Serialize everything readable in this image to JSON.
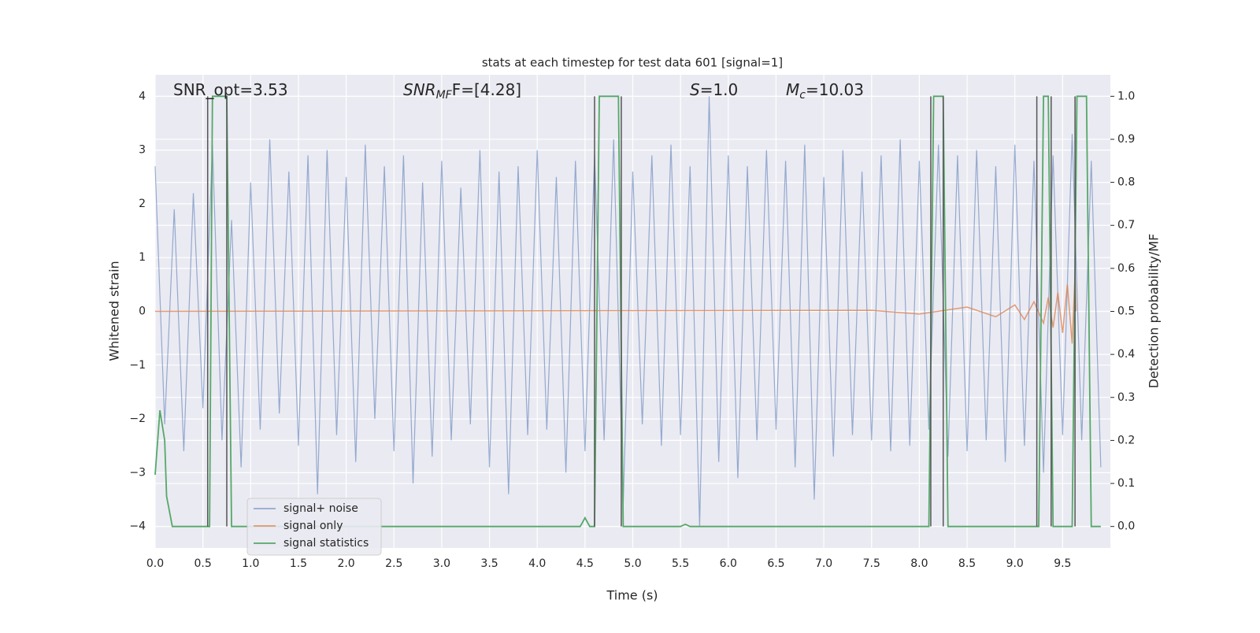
{
  "chart_data": {
    "type": "line",
    "title": "stats at each timestep for test data 601 [signal=1]",
    "xlabel": "Time (s)",
    "ylabel": "Whitened strain",
    "y2label": "Detection probability/MF",
    "annotations": [
      {
        "main": "SNR_opt=3.53"
      },
      {
        "main": "SNR",
        "sub": "MF",
        "rest": "F=[4.28]"
      },
      {
        "main": "S",
        "rest": "=1.0"
      },
      {
        "main": "M",
        "sub": "c",
        "rest": "=10.03"
      }
    ],
    "xlim": [
      0,
      10
    ],
    "xticks": [
      {
        "value": 0,
        "label": "0.0"
      },
      0.5,
      {
        "value": 1,
        "label": "1.0"
      },
      1.5,
      {
        "value": 2,
        "label": "2.0"
      },
      2.5,
      {
        "value": 3,
        "label": "3.0"
      },
      3.5,
      {
        "value": 4,
        "label": "4.0"
      },
      4.5,
      {
        "value": 5,
        "label": "5.0"
      },
      5.5,
      {
        "value": 6,
        "label": "6.0"
      },
      6.5,
      {
        "value": 7,
        "label": "7.0"
      },
      7.5,
      {
        "value": 8,
        "label": "8.0"
      },
      8.5,
      {
        "value": 9,
        "label": "9.0"
      },
      9.5
    ],
    "ylim": [
      -4.4,
      4.4
    ],
    "yticks": [
      {
        "value": -4,
        "label": "−4"
      },
      {
        "value": -3,
        "label": "−3"
      },
      {
        "value": -2,
        "label": "−2"
      },
      {
        "value": -1,
        "label": "−1"
      },
      0,
      1,
      2,
      3,
      4
    ],
    "y2lim": [
      -0.05,
      1.05
    ],
    "y2ticks": [
      {
        "value": 0,
        "label": "0.0"
      },
      0.1,
      0.2,
      0.3,
      0.4,
      0.5,
      0.6,
      0.7,
      0.8,
      0.9,
      {
        "value": 1,
        "label": "1.0"
      }
    ],
    "grid": true,
    "legend": "lower left",
    "series": [
      {
        "name": "signal+ noise",
        "color": "#4c72b0",
        "x": [
          0.0,
          0.1,
          0.2,
          0.3,
          0.4,
          0.5,
          0.6,
          0.7,
          0.8,
          0.9,
          1.0,
          1.1,
          1.2,
          1.3,
          1.4,
          1.5,
          1.6,
          1.7,
          1.8,
          1.9,
          2.0,
          2.1,
          2.2,
          2.3,
          2.4,
          2.5,
          2.6,
          2.7,
          2.8,
          2.9,
          3.0,
          3.1,
          3.2,
          3.3,
          3.4,
          3.5,
          3.6,
          3.7,
          3.8,
          3.9,
          4.0,
          4.1,
          4.2,
          4.3,
          4.4,
          4.5,
          4.6,
          4.7,
          4.8,
          4.9,
          5.0,
          5.1,
          5.2,
          5.3,
          5.4,
          5.5,
          5.6,
          5.7,
          5.8,
          5.9,
          6.0,
          6.1,
          6.2,
          6.3,
          6.4,
          6.5,
          6.6,
          6.7,
          6.8,
          6.9,
          7.0,
          7.1,
          7.2,
          7.3,
          7.4,
          7.5,
          7.6,
          7.7,
          7.8,
          7.9,
          8.0,
          8.1,
          8.2,
          8.3,
          8.4,
          8.5,
          8.6,
          8.7,
          8.8,
          8.9,
          9.0,
          9.1,
          9.2,
          9.3,
          9.4,
          9.5,
          9.6,
          9.7,
          9.8,
          9.9
        ],
        "values": [
          2.7,
          -2.1,
          1.9,
          -2.6,
          2.2,
          -1.8,
          3.1,
          -2.4,
          1.7,
          -2.9,
          2.4,
          -2.2,
          3.2,
          -1.9,
          2.6,
          -2.5,
          2.9,
          -3.4,
          3.0,
          -2.3,
          2.5,
          -2.8,
          3.1,
          -2.0,
          2.7,
          -2.6,
          2.9,
          -3.2,
          2.4,
          -2.7,
          2.8,
          -2.4,
          2.3,
          -2.1,
          3.0,
          -2.9,
          2.6,
          -3.4,
          2.7,
          -2.3,
          3.0,
          -2.2,
          2.5,
          -3.0,
          2.8,
          -2.6,
          2.9,
          -2.4,
          3.2,
          -3.6,
          2.6,
          -2.1,
          2.9,
          -2.5,
          3.1,
          -2.3,
          2.7,
          -4.0,
          4.0,
          -2.8,
          2.9,
          -3.1,
          2.7,
          -2.4,
          3.0,
          -2.2,
          2.8,
          -2.9,
          3.1,
          -3.5,
          2.5,
          -2.7,
          3.0,
          -2.3,
          2.6,
          -2.4,
          2.9,
          -2.6,
          3.2,
          -2.5,
          2.8,
          -2.2,
          3.1,
          -2.7,
          2.9,
          -2.6,
          3.0,
          -2.4,
          2.7,
          -2.8,
          3.1,
          -2.5,
          2.8,
          -3.0,
          2.9,
          -2.3,
          3.3,
          -2.4,
          2.8,
          -2.9
        ]
      },
      {
        "name": "signal only",
        "color": "#dd8452",
        "x": [
          0,
          7.5,
          8.0,
          8.5,
          8.8,
          9.0,
          9.1,
          9.2,
          9.3,
          9.35,
          9.4,
          9.45,
          9.5,
          9.55,
          9.6,
          9.63,
          9.64
        ],
        "values": [
          0,
          0.02,
          -0.05,
          0.08,
          -0.1,
          0.12,
          -0.15,
          0.18,
          -0.22,
          0.26,
          -0.3,
          0.35,
          -0.4,
          0.5,
          -0.6,
          0.7,
          0
        ]
      },
      {
        "name": "signal statistics",
        "color": "#55a868",
        "axis": "y2",
        "x": [
          0,
          0.05,
          0.1,
          0.12,
          0.18,
          0.57,
          0.6,
          0.75,
          0.8,
          4.45,
          4.5,
          4.55,
          4.6,
          4.65,
          4.85,
          4.9,
          5.5,
          5.55,
          5.6,
          8.1,
          8.15,
          8.25,
          8.3,
          9.25,
          9.3,
          9.35,
          9.4,
          9.6,
          9.65,
          9.75,
          9.8,
          9.9
        ],
        "values": [
          0.12,
          0.27,
          0.2,
          0.07,
          0.0,
          0.0,
          1.0,
          1.0,
          0.0,
          0.0,
          0.02,
          0.0,
          0.0,
          1.0,
          1.0,
          0.0,
          0.0,
          0.005,
          0.0,
          0.0,
          1.0,
          1.0,
          0.0,
          0.0,
          1.0,
          1.0,
          0.0,
          0.0,
          1.0,
          1.0,
          0.0,
          0.0
        ]
      }
    ],
    "vlines": {
      "color": "#555555",
      "x": [
        0.55,
        0.75,
        4.6,
        4.88,
        8.12,
        8.25,
        9.23,
        9.38,
        9.63
      ]
    }
  }
}
